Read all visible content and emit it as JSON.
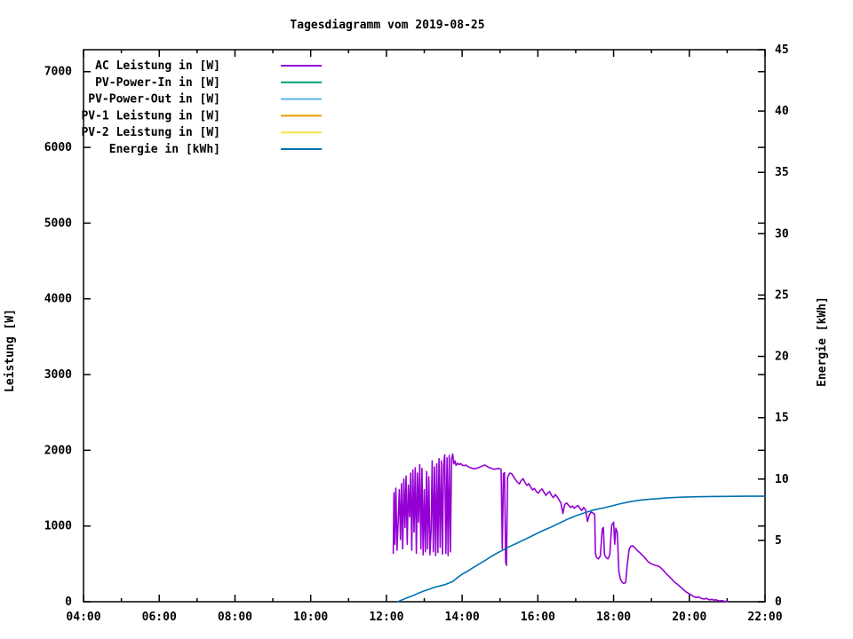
{
  "page": {
    "background": "#ffffff"
  },
  "chart_data": {
    "type": "line",
    "title": "Tagesdiagramm vom 2019-08-25",
    "x_axis": {
      "tick_labels": [
        "04:00",
        "06:00",
        "08:00",
        "10:00",
        "12:00",
        "14:00",
        "16:00",
        "18:00",
        "20:00",
        "22:00"
      ],
      "major_tick_hours": [
        4,
        6,
        8,
        10,
        12,
        14,
        16,
        18,
        20,
        22
      ],
      "minor_tick_hours": [
        5,
        7,
        9,
        11,
        13,
        15,
        17,
        19,
        21
      ],
      "range_hours": [
        4,
        22
      ]
    },
    "left_axis": {
      "label": "Leistung [W]",
      "tick_values": [
        0,
        1000,
        2000,
        3000,
        4000,
        5000,
        6000,
        7000
      ],
      "range": [
        0,
        7290
      ],
      "grid": false
    },
    "right_axis": {
      "label": "Energie [kWh]",
      "tick_values": [
        0,
        5,
        10,
        15,
        20,
        25,
        30,
        35,
        40,
        45
      ],
      "range": [
        0,
        45
      ]
    },
    "legend_position": "top-left-inside",
    "series": [
      {
        "name": "AC Leistung in [W]",
        "color": "#9400d3",
        "axis": "left",
        "points": [
          [
            12.18,
            640
          ],
          [
            12.2,
            1440
          ],
          [
            12.22,
            760
          ],
          [
            12.25,
            1500
          ],
          [
            12.28,
            680
          ],
          [
            12.31,
            1060
          ],
          [
            12.34,
            1480
          ],
          [
            12.37,
            820
          ],
          [
            12.4,
            1560
          ],
          [
            12.43,
            700
          ],
          [
            12.46,
            1620
          ],
          [
            12.49,
            980
          ],
          [
            12.52,
            1660
          ],
          [
            12.55,
            760
          ],
          [
            12.58,
            1540
          ],
          [
            12.61,
            1120
          ],
          [
            12.64,
            1700
          ],
          [
            12.67,
            680
          ],
          [
            12.7,
            1740
          ],
          [
            12.73,
            920
          ],
          [
            12.76,
            1770
          ],
          [
            12.79,
            640
          ],
          [
            12.82,
            1700
          ],
          [
            12.85,
            1050
          ],
          [
            12.88,
            1810
          ],
          [
            12.91,
            700
          ],
          [
            12.94,
            1760
          ],
          [
            12.97,
            620
          ],
          [
            13.0,
            1480
          ],
          [
            13.03,
            660
          ],
          [
            13.06,
            1720
          ],
          [
            13.09,
            700
          ],
          [
            13.12,
            1650
          ],
          [
            13.15,
            620
          ],
          [
            13.18,
            950
          ],
          [
            13.21,
            1860
          ],
          [
            13.24,
            660
          ],
          [
            13.27,
            1780
          ],
          [
            13.3,
            610
          ],
          [
            13.33,
            1820
          ],
          [
            13.36,
            650
          ],
          [
            13.39,
            1890
          ],
          [
            13.42,
            720
          ],
          [
            13.45,
            1860
          ],
          [
            13.48,
            630
          ],
          [
            13.51,
            1800
          ],
          [
            13.54,
            1940
          ],
          [
            13.57,
            640
          ],
          [
            13.6,
            1900
          ],
          [
            13.63,
            610
          ],
          [
            13.66,
            1930
          ],
          [
            13.69,
            660
          ],
          [
            13.72,
            1880
          ],
          [
            13.75,
            1950
          ],
          [
            13.78,
            1820
          ],
          [
            13.81,
            1860
          ],
          [
            13.84,
            1800
          ],
          [
            13.88,
            1830
          ],
          [
            13.92,
            1810
          ],
          [
            13.96,
            1825
          ],
          [
            14.0,
            1805
          ],
          [
            14.05,
            1795
          ],
          [
            14.1,
            1805
          ],
          [
            14.15,
            1785
          ],
          [
            14.2,
            1775
          ],
          [
            14.25,
            1765
          ],
          [
            14.3,
            1755
          ],
          [
            14.35,
            1760
          ],
          [
            14.4,
            1765
          ],
          [
            14.45,
            1775
          ],
          [
            14.5,
            1785
          ],
          [
            14.55,
            1795
          ],
          [
            14.6,
            1805
          ],
          [
            14.65,
            1790
          ],
          [
            14.7,
            1775
          ],
          [
            14.75,
            1765
          ],
          [
            14.8,
            1755
          ],
          [
            14.85,
            1750
          ],
          [
            14.9,
            1755
          ],
          [
            14.95,
            1760
          ],
          [
            15.0,
            1755
          ],
          [
            15.03,
            1745
          ],
          [
            15.06,
            700
          ],
          [
            15.09,
            1690
          ],
          [
            15.12,
            1705
          ],
          [
            15.15,
            520
          ],
          [
            15.17,
            480
          ],
          [
            15.2,
            1640
          ],
          [
            15.24,
            1685
          ],
          [
            15.27,
            1700
          ],
          [
            15.31,
            1690
          ],
          [
            15.36,
            1650
          ],
          [
            15.41,
            1610
          ],
          [
            15.46,
            1580
          ],
          [
            15.51,
            1555
          ],
          [
            15.56,
            1600
          ],
          [
            15.61,
            1625
          ],
          [
            15.66,
            1575
          ],
          [
            15.71,
            1535
          ],
          [
            15.76,
            1560
          ],
          [
            15.81,
            1515
          ],
          [
            15.86,
            1475
          ],
          [
            15.91,
            1495
          ],
          [
            15.96,
            1455
          ],
          [
            16.01,
            1435
          ],
          [
            16.06,
            1470
          ],
          [
            16.11,
            1490
          ],
          [
            16.16,
            1445
          ],
          [
            16.21,
            1405
          ],
          [
            16.26,
            1435
          ],
          [
            16.31,
            1455
          ],
          [
            16.36,
            1405
          ],
          [
            16.41,
            1375
          ],
          [
            16.46,
            1415
          ],
          [
            16.51,
            1385
          ],
          [
            16.56,
            1345
          ],
          [
            16.61,
            1305
          ],
          [
            16.66,
            1165
          ],
          [
            16.71,
            1285
          ],
          [
            16.76,
            1305
          ],
          [
            16.81,
            1275
          ],
          [
            16.86,
            1245
          ],
          [
            16.91,
            1265
          ],
          [
            16.96,
            1235
          ],
          [
            17.01,
            1255
          ],
          [
            17.06,
            1270
          ],
          [
            17.11,
            1235
          ],
          [
            17.16,
            1205
          ],
          [
            17.21,
            1245
          ],
          [
            17.26,
            1215
          ],
          [
            17.31,
            1060
          ],
          [
            17.36,
            1150
          ],
          [
            17.41,
            1185
          ],
          [
            17.46,
            1170
          ],
          [
            17.5,
            1155
          ],
          [
            17.52,
            640
          ],
          [
            17.55,
            585
          ],
          [
            17.6,
            565
          ],
          [
            17.65,
            605
          ],
          [
            17.7,
            960
          ],
          [
            17.73,
            980
          ],
          [
            17.76,
            625
          ],
          [
            17.8,
            585
          ],
          [
            17.85,
            565
          ],
          [
            17.9,
            620
          ],
          [
            17.95,
            1010
          ],
          [
            18.0,
            1050
          ],
          [
            18.03,
            760
          ],
          [
            18.06,
            970
          ],
          [
            18.1,
            915
          ],
          [
            18.14,
            400
          ],
          [
            18.18,
            300
          ],
          [
            18.22,
            260
          ],
          [
            18.27,
            240
          ],
          [
            18.32,
            255
          ],
          [
            18.36,
            480
          ],
          [
            18.41,
            690
          ],
          [
            18.45,
            730
          ],
          [
            18.5,
            740
          ],
          [
            18.55,
            720
          ],
          [
            18.6,
            690
          ],
          [
            18.65,
            665
          ],
          [
            18.7,
            645
          ],
          [
            18.75,
            620
          ],
          [
            18.8,
            595
          ],
          [
            18.85,
            565
          ],
          [
            18.9,
            535
          ],
          [
            18.95,
            515
          ],
          [
            19.0,
            500
          ],
          [
            19.05,
            490
          ],
          [
            19.1,
            480
          ],
          [
            19.15,
            475
          ],
          [
            19.2,
            468
          ],
          [
            19.25,
            445
          ],
          [
            19.3,
            420
          ],
          [
            19.35,
            395
          ],
          [
            19.4,
            365
          ],
          [
            19.45,
            342
          ],
          [
            19.5,
            318
          ],
          [
            19.55,
            292
          ],
          [
            19.6,
            262
          ],
          [
            19.65,
            245
          ],
          [
            19.7,
            226
          ],
          [
            19.75,
            202
          ],
          [
            19.8,
            180
          ],
          [
            19.85,
            156
          ],
          [
            19.9,
            136
          ],
          [
            19.95,
            120
          ],
          [
            20.0,
            105
          ],
          [
            20.05,
            90
          ],
          [
            20.1,
            72
          ],
          [
            20.15,
            62
          ],
          [
            20.2,
            55
          ],
          [
            20.25,
            66
          ],
          [
            20.3,
            47
          ],
          [
            20.35,
            40
          ],
          [
            20.4,
            35
          ],
          [
            20.45,
            46
          ],
          [
            20.5,
            31
          ],
          [
            20.55,
            26
          ],
          [
            20.6,
            32
          ],
          [
            20.65,
            21
          ],
          [
            20.7,
            26
          ],
          [
            20.75,
            16
          ],
          [
            20.8,
            11
          ],
          [
            20.85,
            16
          ],
          [
            20.9,
            9
          ],
          [
            20.95,
            6
          ],
          [
            21.0,
            3
          ]
        ]
      },
      {
        "name": "PV-Power-In in [W]",
        "color": "#009e73",
        "axis": "left",
        "points": []
      },
      {
        "name": "PV-Power-Out in [W]",
        "color": "#56b4e9",
        "axis": "left",
        "points": []
      },
      {
        "name": "PV-1 Leistung in [W]",
        "color": "#e69f00",
        "axis": "left",
        "points": []
      },
      {
        "name": "PV-2 Leistung in [W]",
        "color": "#f0e442",
        "axis": "left",
        "points": []
      },
      {
        "name": "Energie in [kWh]",
        "color": "#0072b2",
        "axis": "right",
        "points": [
          [
            12.3,
            0
          ],
          [
            12.45,
            0.2
          ],
          [
            12.58,
            0.36
          ],
          [
            12.7,
            0.5
          ],
          [
            12.85,
            0.7
          ],
          [
            13.0,
            0.88
          ],
          [
            13.1,
            1.0
          ],
          [
            13.3,
            1.2
          ],
          [
            13.45,
            1.32
          ],
          [
            13.55,
            1.4
          ],
          [
            13.65,
            1.52
          ],
          [
            13.75,
            1.65
          ],
          [
            13.85,
            1.9
          ],
          [
            14.0,
            2.24
          ],
          [
            14.15,
            2.5
          ],
          [
            14.3,
            2.8
          ],
          [
            14.46,
            3.1
          ],
          [
            14.6,
            3.35
          ],
          [
            14.75,
            3.65
          ],
          [
            14.93,
            3.97
          ],
          [
            15.1,
            4.25
          ],
          [
            15.25,
            4.5
          ],
          [
            15.4,
            4.7
          ],
          [
            15.6,
            5.0
          ],
          [
            15.87,
            5.4
          ],
          [
            16.1,
            5.75
          ],
          [
            16.34,
            6.07
          ],
          [
            16.6,
            6.45
          ],
          [
            16.8,
            6.75
          ],
          [
            17.0,
            7.0
          ],
          [
            17.28,
            7.3
          ],
          [
            17.5,
            7.5
          ],
          [
            17.75,
            7.66
          ],
          [
            18.0,
            7.85
          ],
          [
            18.2,
            8.0
          ],
          [
            18.45,
            8.16
          ],
          [
            18.7,
            8.28
          ],
          [
            19.0,
            8.37
          ],
          [
            19.16,
            8.4
          ],
          [
            19.4,
            8.47
          ],
          [
            19.86,
            8.53
          ],
          [
            20.2,
            8.56
          ],
          [
            20.6,
            8.58
          ],
          [
            21.0,
            8.59
          ],
          [
            21.5,
            8.6
          ],
          [
            22.0,
            8.6
          ]
        ]
      }
    ]
  }
}
